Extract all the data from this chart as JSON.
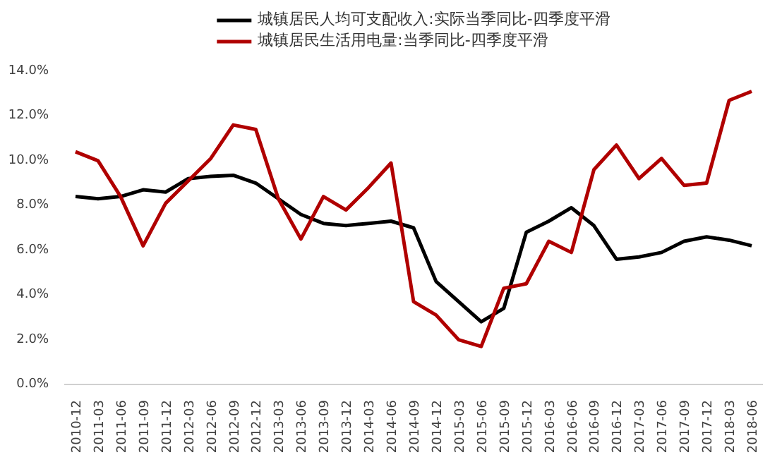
{
  "chart_data": {
    "type": "line",
    "legend": "top",
    "grid": false,
    "categories": [
      "2010-12",
      "2011-03",
      "2011-06",
      "2011-09",
      "2011-12",
      "2012-03",
      "2012-06",
      "2012-09",
      "2012-12",
      "2013-03",
      "2013-06",
      "2013-09",
      "2013-12",
      "2014-03",
      "2014-06",
      "2014-09",
      "2014-12",
      "2015-03",
      "2015-06",
      "2015-09",
      "2015-12",
      "2016-03",
      "2016-06",
      "2016-09",
      "2016-12",
      "2017-03",
      "2017-06",
      "2017-09",
      "2017-12",
      "2018-03",
      "2018-06"
    ],
    "ylim": [
      0,
      14
    ],
    "yticks": [
      {
        "value": 0,
        "label": "0.0%"
      },
      {
        "value": 2,
        "label": "2.0%"
      },
      {
        "value": 4,
        "label": "4.0%"
      },
      {
        "value": 6,
        "label": "6.0%"
      },
      {
        "value": 8,
        "label": "8.0%"
      },
      {
        "value": 10,
        "label": "10.0%"
      },
      {
        "value": 12,
        "label": "12.0%"
      },
      {
        "value": 14,
        "label": "14.0%"
      }
    ],
    "series": [
      {
        "name": "城镇居民人均可支配收入:实际当季同比-四季度平滑",
        "color": "#000000",
        "values": [
          8.4,
          8.3,
          8.4,
          8.7,
          8.6,
          9.2,
          9.3,
          9.35,
          9.0,
          8.3,
          7.6,
          7.2,
          7.1,
          7.2,
          7.3,
          7.0,
          4.6,
          3.7,
          2.8,
          3.4,
          6.8,
          7.3,
          7.9,
          7.1,
          5.6,
          5.7,
          5.9,
          6.4,
          6.6,
          6.45,
          6.2
        ]
      },
      {
        "name": "城镇居民生活用电量:当季同比-四季度平滑",
        "color": "#b00000",
        "values": [
          10.4,
          10.0,
          8.4,
          6.2,
          8.1,
          9.1,
          10.1,
          11.6,
          11.4,
          8.3,
          6.5,
          8.4,
          7.8,
          8.8,
          9.9,
          3.7,
          3.1,
          2.0,
          1.7,
          4.3,
          4.5,
          6.4,
          5.9,
          9.6,
          10.7,
          9.2,
          10.1,
          8.9,
          9.0,
          12.7,
          13.1
        ]
      }
    ]
  }
}
